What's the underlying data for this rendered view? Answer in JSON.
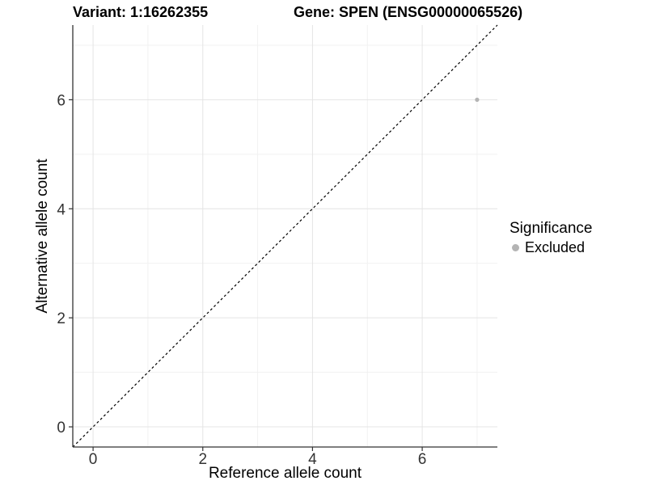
{
  "titles": {
    "variant": "Variant: 1:16262355",
    "gene": "Gene: SPEN (ENSG00000065526)"
  },
  "axes": {
    "x": {
      "label": "Reference allele count",
      "tick_labels": [
        "0",
        "2",
        "4",
        "6"
      ]
    },
    "y": {
      "label": "Alternative allele count",
      "tick_labels": [
        "0",
        "2",
        "4",
        "6"
      ]
    }
  },
  "legend": {
    "title": "Significance",
    "items": [
      {
        "label": "Excluded",
        "color": "#b4b4b4"
      }
    ]
  },
  "chart_data": {
    "type": "scatter",
    "title_left": "Variant: 1:16262355",
    "title_right": "Gene: SPEN (ENSG00000065526)",
    "xlabel": "Reference allele count",
    "ylabel": "Alternative allele count",
    "xlim": [
      -0.37,
      7.37
    ],
    "ylim": [
      -0.37,
      7.37
    ],
    "x_major_ticks": [
      0,
      2,
      4,
      6
    ],
    "y_major_ticks": [
      0,
      2,
      4,
      6
    ],
    "x_minor_gridlines": [
      1,
      3,
      5,
      7
    ],
    "y_minor_gridlines": [
      1,
      3,
      5,
      7
    ],
    "grid": true,
    "legend_position": "right",
    "series": [
      {
        "name": "Excluded",
        "color": "#b4b4b4",
        "point_radius": 2.6,
        "points": [
          [
            7,
            6
          ]
        ]
      }
    ],
    "reference_line": {
      "kind": "identity y=x",
      "from": [
        -0.37,
        -0.37
      ],
      "to": [
        7.37,
        7.37
      ],
      "style": "dashed",
      "color": "#000000"
    },
    "colors": {
      "axis": "#333333",
      "tick_text": "#333333",
      "grid_major": "#e4e4e4",
      "grid_minor": "#f1f1f1",
      "background": "#ffffff"
    }
  }
}
